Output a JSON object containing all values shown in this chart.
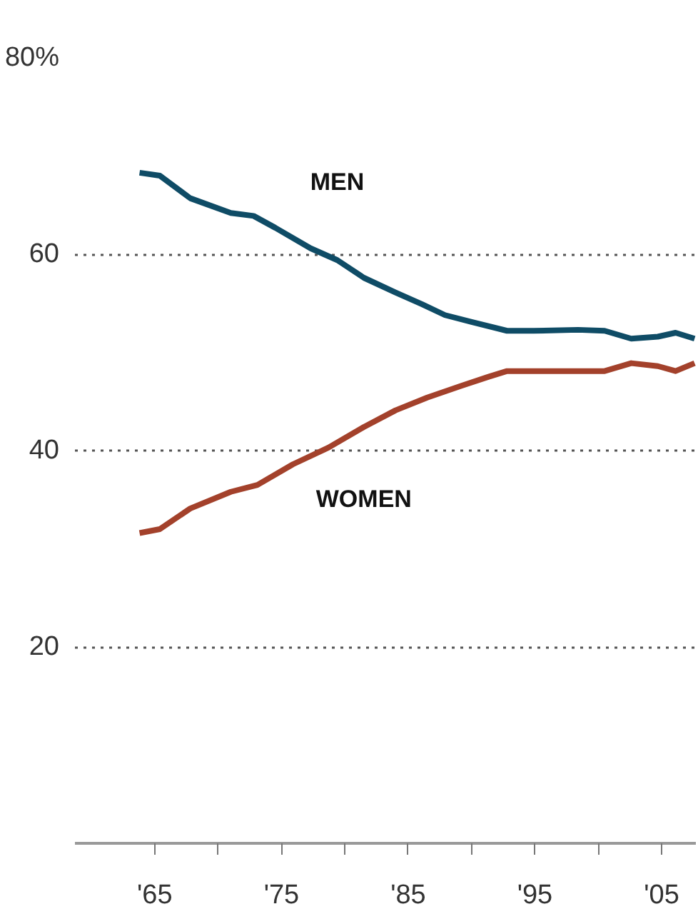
{
  "chart_data": {
    "type": "line",
    "xlim": [
      1958.7,
      2007.7
    ],
    "ylim": [
      0,
      80
    ],
    "xticks": [
      {
        "value": 1965,
        "label": "'65"
      },
      {
        "value": 1970,
        "label": null
      },
      {
        "value": 1975,
        "label": "'75"
      },
      {
        "value": 1980,
        "label": null
      },
      {
        "value": 1985,
        "label": "'85"
      },
      {
        "value": 1990,
        "label": null
      },
      {
        "value": 1995,
        "label": "'95"
      },
      {
        "value": 2000,
        "label": null
      },
      {
        "value": 2005,
        "label": "'05"
      }
    ],
    "yticks": [
      {
        "value": 20,
        "label": "20"
      },
      {
        "value": 40,
        "label": "40"
      },
      {
        "value": 60,
        "label": "60"
      },
      {
        "value": 80,
        "label": "80%"
      }
    ],
    "grid": "y",
    "legend": false,
    "marker": "none",
    "line_style": "solid",
    "series": [
      {
        "name": "MEN",
        "color": "#0f4c66",
        "x": [
          1963.8,
          1965.4,
          1967.8,
          1971.0,
          1972.8,
          1974.5,
          1977.3,
          1979.4,
          1981.5,
          1984.0,
          1986.1,
          1987.9,
          1990.0,
          1992.8,
          1994.9,
          1998.4,
          2000.5,
          2002.6,
          2004.7,
          2006.1,
          2007.6
        ],
        "values": [
          68.3,
          68.0,
          65.7,
          64.2,
          63.9,
          62.7,
          60.6,
          59.4,
          57.6,
          56.1,
          54.9,
          53.8,
          53.1,
          52.2,
          52.2,
          52.3,
          52.2,
          51.4,
          51.6,
          52.0,
          51.4
        ]
      },
      {
        "name": "WOMEN",
        "color": "#a3412b",
        "x": [
          1963.8,
          1965.4,
          1967.8,
          1971.0,
          1973.1,
          1975.9,
          1978.7,
          1981.5,
          1984.0,
          1986.5,
          1989.2,
          1991.3,
          1992.8,
          1994.9,
          1998.4,
          2000.5,
          2002.6,
          2004.7,
          2006.1,
          2007.6
        ],
        "values": [
          31.6,
          32.0,
          34.1,
          35.8,
          36.5,
          38.6,
          40.3,
          42.4,
          44.1,
          45.4,
          46.6,
          47.5,
          48.1,
          48.1,
          48.1,
          48.1,
          48.9,
          48.6,
          48.1,
          48.9
        ]
      }
    ]
  }
}
